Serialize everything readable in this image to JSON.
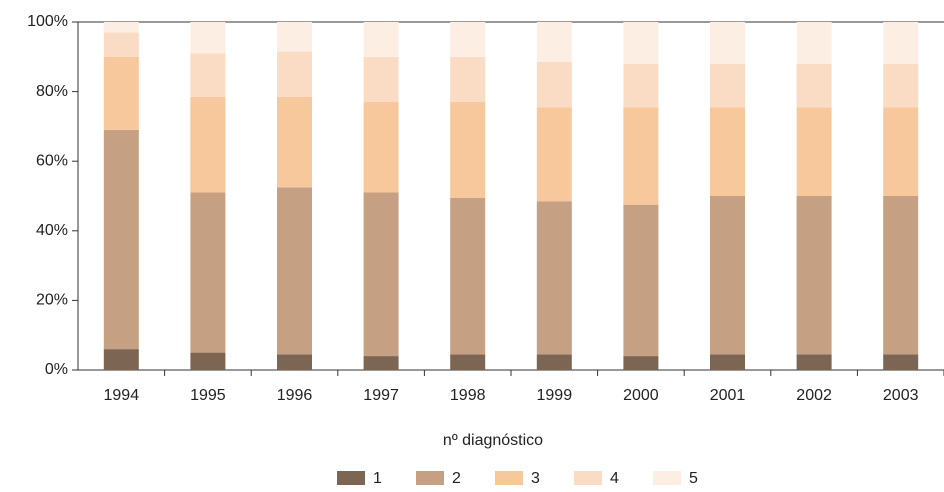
{
  "chart_data": {
    "type": "stacked_bar",
    "categories": [
      "1994",
      "1995",
      "1996",
      "1997",
      "1998",
      "1999",
      "2000",
      "2001",
      "2002",
      "2003"
    ],
    "series": [
      {
        "name": "1",
        "color": "#7d6553",
        "values": [
          6,
          5,
          4.5,
          4,
          4.5,
          4.5,
          4,
          4.5,
          4.5,
          4.5
        ]
      },
      {
        "name": "2",
        "color": "#c5a083",
        "values": [
          63,
          46,
          48,
          47,
          45,
          44,
          43.5,
          45.5,
          45.5,
          45.5
        ]
      },
      {
        "name": "3",
        "color": "#f7c89c",
        "values": [
          21,
          27.5,
          26,
          26,
          27.5,
          27,
          28,
          25.5,
          25.5,
          25.5
        ]
      },
      {
        "name": "4",
        "color": "#fadbc3",
        "values": [
          7,
          12.5,
          13,
          13,
          13,
          13,
          12.5,
          12.5,
          12.5,
          12.5
        ]
      },
      {
        "name": "5",
        "color": "#fdeee4",
        "values": [
          3,
          9,
          8.5,
          10,
          10,
          11.5,
          12,
          12,
          12,
          12
        ]
      }
    ],
    "ylim": [
      0,
      100
    ],
    "yticks": [
      {
        "value": 0,
        "label": "0%"
      },
      {
        "value": 20,
        "label": "20%"
      },
      {
        "value": 40,
        "label": "40%"
      },
      {
        "value": 60,
        "label": "60%"
      },
      {
        "value": 80,
        "label": "80%"
      },
      {
        "value": 100,
        "label": "100%"
      }
    ],
    "legend_title": "nº diagnóstico",
    "legend": "bottom"
  }
}
